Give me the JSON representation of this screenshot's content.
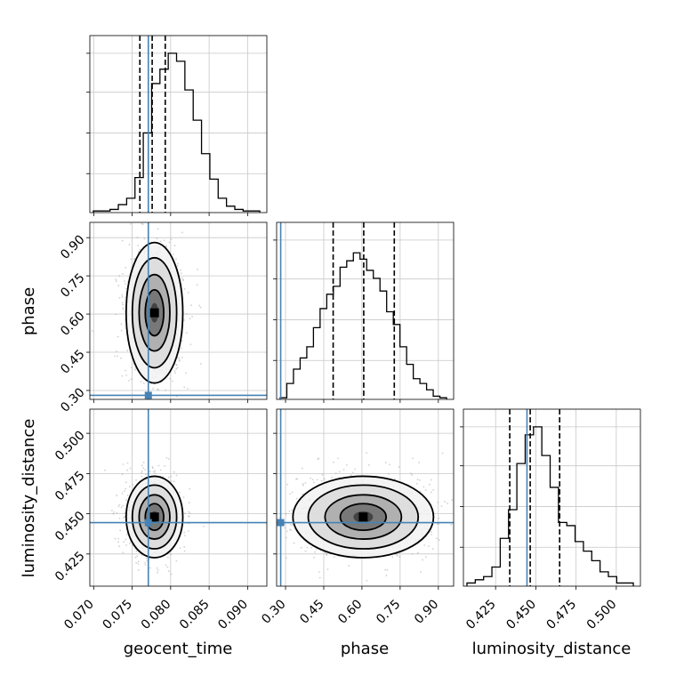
{
  "chart_data": {
    "type": "corner",
    "parameters": [
      "geocent_time",
      "phase",
      "luminosity_distance"
    ],
    "axis_labels": {
      "geocent_time": "geocent_time",
      "phase": "phase",
      "luminosity_distance": "luminosity_distance"
    },
    "ranges": {
      "geocent_time": [
        0.0695,
        0.0925
      ],
      "phase": [
        0.265,
        0.96
      ],
      "luminosity_distance": [
        0.405,
        0.515
      ]
    },
    "ticks": {
      "geocent_time": [
        0.07,
        0.075,
        0.08,
        0.085,
        0.09
      ],
      "phase": [
        0.3,
        0.45,
        0.6,
        0.75,
        0.9
      ],
      "luminosity_distance": [
        0.425,
        0.45,
        0.475,
        0.5
      ]
    },
    "tick_labels": {
      "geocent_time": [
        "0.070",
        "0.075",
        "0.080",
        "0.085",
        "0.090"
      ],
      "phase": [
        "0.30",
        "0.45",
        "0.60",
        "0.75",
        "0.90"
      ],
      "luminosity_distance": [
        "0.425",
        "0.450",
        "0.475",
        "0.500"
      ]
    },
    "truth": {
      "geocent_time": 0.0771,
      "phase": 0.281,
      "luminosity_distance": 0.4445
    },
    "quantiles": {
      "geocent_time": [
        0.076,
        0.0776,
        0.0793
      ],
      "phase": [
        0.487,
        0.607,
        0.727
      ],
      "luminosity_distance": [
        0.4338,
        0.4465,
        0.4648
      ]
    },
    "histograms": {
      "geocent_time": [
        0.01,
        0.01,
        0.02,
        0.05,
        0.09,
        0.22,
        0.5,
        0.81,
        0.9,
        1.0,
        0.95,
        0.77,
        0.58,
        0.37,
        0.21,
        0.09,
        0.04,
        0.02,
        0.01,
        0.01
      ],
      "phase": [
        0.01,
        0.1,
        0.19,
        0.26,
        0.33,
        0.45,
        0.57,
        0.66,
        0.71,
        0.83,
        0.87,
        0.92,
        0.88,
        0.81,
        0.76,
        0.68,
        0.55,
        0.47,
        0.33,
        0.22,
        0.13,
        0.1,
        0.06,
        0.02,
        0.01
      ],
      "luminosity_distance": [
        0.02,
        0.04,
        0.06,
        0.12,
        0.3,
        0.48,
        0.77,
        0.95,
        1.0,
        0.82,
        0.62,
        0.4,
        0.38,
        0.28,
        0.22,
        0.16,
        0.09,
        0.06,
        0.02,
        0.02
      ]
    },
    "posterior_means": {
      "geocent_time": 0.0779,
      "phase": 0.605,
      "luminosity_distance": 0.448
    },
    "posterior_sigmas": {
      "geocent_time": 0.0016,
      "phase": 0.12,
      "luminosity_distance": 0.011
    },
    "truth_color": "#4682b4",
    "hist_color": "#000000",
    "quantile_style": "dashed",
    "grid": true
  }
}
